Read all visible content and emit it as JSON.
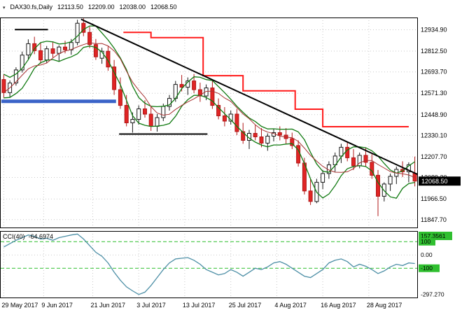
{
  "title": {
    "symbol_period": "DAX30.fs,Daily",
    "open": "12113.50",
    "high": "12209.00",
    "low": "12038.00",
    "close": "12068.50"
  },
  "cci_label": {
    "name": "CCI(40)",
    "value": "-64.6974"
  },
  "colors": {
    "bg": "#ffffff",
    "grid": "#c9c9c9",
    "panel_border": "#000000",
    "bull_fill": "#ffffff",
    "bull_stroke": "#1a1a1a",
    "bear_fill": "#e02525",
    "bear_stroke": "#b01818",
    "ma_green": "#117a11",
    "ma_red": "#a83232",
    "step_red": "#ff1a1a",
    "blue_line": "#3a63c8",
    "trend_black": "#000000",
    "cci_line": "#4d8fa6",
    "level_green": "#2fbf2f",
    "axis_text": "#000000",
    "price_box_bg": "#000000",
    "price_box_text": "#ffffff"
  },
  "chart_data": [
    {
      "type": "candlestick",
      "title": "DAX30.fs,Daily",
      "ohlc_current": {
        "open": 12113.5,
        "high": 12209.0,
        "low": 12038.0,
        "close": 12068.5
      },
      "last_price": 12068.5,
      "last_price_label": "12068.50",
      "ylim": [
        11803,
        13005
      ],
      "y_axis_ticks": [
        12934.9,
        12812.5,
        12693.7,
        12571.3,
        12448.9,
        12330.1,
        12207.7,
        12089.3,
        11966.5,
        11847.7
      ],
      "x_tick_labels": [
        "29 May 2017",
        "9 Jun 2017",
        "21 Jun 2017",
        "3 Jul 2017",
        "13 Jul 2017",
        "25 Jul 2017",
        "4 Aug 2017",
        "16 Aug 2017",
        "28 Aug 2017"
      ],
      "x_tick_indices": [
        0,
        6.5,
        14.5,
        22,
        29.5,
        37,
        44.5,
        52,
        59.5
      ],
      "candles": [
        [
          12650,
          12680,
          12545,
          12575
        ],
        [
          12575,
          12645,
          12550,
          12630
        ],
        [
          12630,
          12720,
          12615,
          12705
        ],
        [
          12705,
          12810,
          12690,
          12790
        ],
        [
          12790,
          12880,
          12760,
          12855
        ],
        [
          12855,
          12895,
          12795,
          12815
        ],
        [
          12815,
          12860,
          12740,
          12762
        ],
        [
          12762,
          12842,
          12745,
          12826
        ],
        [
          12826,
          12866,
          12776,
          12800
        ],
        [
          12800,
          12846,
          12752,
          12836
        ],
        [
          12836,
          12872,
          12800,
          12820
        ],
        [
          12820,
          12882,
          12792,
          12862
        ],
        [
          12862,
          12992,
          12846,
          12972
        ],
        [
          12972,
          13000,
          12898,
          12920
        ],
        [
          12920,
          12952,
          12830,
          12850
        ],
        [
          12850,
          12882,
          12762,
          12780
        ],
        [
          12772,
          12832,
          12740,
          12812
        ],
        [
          12812,
          12840,
          12700,
          12722
        ],
        [
          12722,
          12762,
          12562,
          12592
        ],
        [
          12592,
          12662,
          12482,
          12502
        ],
        [
          12502,
          12562,
          12382,
          12402
        ],
        [
          12402,
          12462,
          12346,
          12422
        ],
        [
          12422,
          12502,
          12392,
          12482
        ],
        [
          12482,
          12532,
          12432,
          12452
        ],
        [
          12452,
          12492,
          12356,
          12382
        ],
        [
          12382,
          12452,
          12352,
          12432
        ],
        [
          12432,
          12512,
          12412,
          12496
        ],
        [
          12496,
          12562,
          12472,
          12542
        ],
        [
          12542,
          12642,
          12522,
          12622
        ],
        [
          12622,
          12676,
          12582,
          12606
        ],
        [
          12606,
          12662,
          12562,
          12642
        ],
        [
          12642,
          12682,
          12572,
          12592
        ],
        [
          12592,
          12632,
          12522,
          12556
        ],
        [
          12556,
          12622,
          12532,
          12602
        ],
        [
          12602,
          12642,
          12482,
          12502
        ],
        [
          12502,
          12542,
          12422,
          12442
        ],
        [
          12442,
          12492,
          12382,
          12412
        ],
        [
          12412,
          12472,
          12392,
          12452
        ],
        [
          12452,
          12482,
          12332,
          12352
        ],
        [
          12352,
          12402,
          12282,
          12302
        ],
        [
          12302,
          12362,
          12252,
          12342
        ],
        [
          12342,
          12392,
          12302,
          12322
        ],
        [
          12322,
          12372,
          12262,
          12286
        ],
        [
          12286,
          12342,
          12242,
          12326
        ],
        [
          12326,
          12366,
          12296,
          12346
        ],
        [
          12346,
          12382,
          12302,
          12332
        ],
        [
          12332,
          12372,
          12282,
          12312
        ],
        [
          12312,
          12346,
          12252,
          12272
        ],
        [
          12272,
          12302,
          12152,
          12172
        ],
        [
          12172,
          12202,
          11992,
          12012
        ],
        [
          12012,
          12082,
          11932,
          11952
        ],
        [
          11952,
          12082,
          11942,
          12062
        ],
        [
          12062,
          12132,
          12022,
          12112
        ],
        [
          12112,
          12182,
          12082,
          12162
        ],
        [
          12162,
          12232,
          12122,
          12212
        ],
        [
          12212,
          12282,
          12172,
          12262
        ],
        [
          12262,
          12292,
          12182,
          12202
        ],
        [
          12202,
          12252,
          12132,
          12156
        ],
        [
          12156,
          12232,
          12142,
          12216
        ],
        [
          12216,
          12262,
          12152,
          12176
        ],
        [
          12176,
          12222,
          12082,
          12102
        ],
        [
          12102,
          12132,
          11868,
          11982
        ],
        [
          11982,
          12062,
          11952,
          12052
        ],
        [
          12052,
          12112,
          12012,
          12096
        ],
        [
          12096,
          12152,
          12052,
          12136
        ],
        [
          12136,
          12182,
          12092,
          12122
        ],
        [
          12122,
          12176,
          12062,
          12162
        ],
        [
          12113.5,
          12209,
          12038,
          12068.5
        ]
      ],
      "overlays": {
        "blue_hline": {
          "price": 12525,
          "from_index": -0.4,
          "to_index": 18.3
        },
        "black_segments": [
          {
            "price": 12936,
            "from_index": 1.8,
            "to_index": 7.2
          },
          {
            "price": 12338,
            "from_index": 18.8,
            "to_index": 33.2
          }
        ],
        "trendline": {
          "from_index": 12.6,
          "from_price": 12995,
          "to_index": 68.5,
          "to_price": 12090
        },
        "red_step": [
          {
            "i": 19.5,
            "p": 12920
          },
          {
            "i": 24,
            "p": 12890
          },
          {
            "i": 32.5,
            "p": 12672
          },
          {
            "i": 39,
            "p": 12585
          },
          {
            "i": 47.5,
            "p": 12480
          },
          {
            "i": 52,
            "p": 12380
          },
          {
            "i": 66,
            "p": 12380
          }
        ]
      }
    },
    {
      "type": "line",
      "indicator": "CCI(40)",
      "current_value": -64.6974,
      "ylim": [
        -320,
        180
      ],
      "y_axis_ticks": [
        {
          "value": 157.3561,
          "label": "157.3561",
          "boxed": true
        },
        {
          "value": 0,
          "label": "0.00",
          "boxed": false
        },
        {
          "value": -297.27,
          "label": "-297.270",
          "boxed": false
        }
      ],
      "levels": [
        {
          "value": 100,
          "label": "100"
        },
        {
          "value": -100,
          "label": "-100"
        }
      ],
      "values": [
        60,
        85,
        110,
        130,
        150,
        140,
        120,
        125,
        110,
        130,
        140,
        150,
        157.36,
        120,
        70,
        20,
        -10,
        -60,
        -130,
        -190,
        -240,
        -270,
        -297.27,
        -280,
        -230,
        -170,
        -110,
        -60,
        -30,
        -25,
        -20,
        -40,
        -70,
        -110,
        -130,
        -150,
        -140,
        -110,
        -130,
        -160,
        -130,
        -100,
        -110,
        -90,
        -60,
        -50,
        -70,
        -100,
        -130,
        -160,
        -170,
        -140,
        -110,
        -60,
        -40,
        -30,
        -50,
        -90,
        -70,
        -85,
        -110,
        -140,
        -120,
        -90,
        -70,
        -80,
        -60,
        -64.6974
      ]
    }
  ]
}
